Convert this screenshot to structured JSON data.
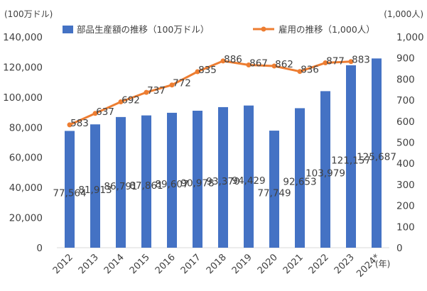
{
  "chart_data": {
    "type": "bar",
    "categories": [
      "2012",
      "2013",
      "2014",
      "2015",
      "2016",
      "2017",
      "2018",
      "2019",
      "2020",
      "2021",
      "2022",
      "2023",
      "2024*"
    ],
    "xlabel": "(年)",
    "series": [
      {
        "name": "部品生産額の推移（100万ドル）",
        "type": "bar",
        "axis": "left",
        "color": "#4472C4",
        "values": [
          77564,
          81913,
          86791,
          87861,
          89607,
          90978,
          93370,
          94429,
          77749,
          92653,
          103979,
          121157,
          125687
        ],
        "labels": [
          "77,564",
          "81,913",
          "86,791",
          "87,861",
          "89,607",
          "90,978",
          "93,370",
          "94,429",
          "77,749",
          "92,653",
          "103,979",
          "121,157",
          "125,687"
        ]
      },
      {
        "name": "雇用の推移（1,000人）",
        "type": "line",
        "axis": "right",
        "color": "#ED7D31",
        "values": [
          583,
          637,
          692,
          737,
          772,
          835,
          886,
          867,
          862,
          836,
          877,
          883,
          null
        ],
        "labels": [
          "583",
          "637",
          "692",
          "737",
          "772",
          "835",
          "886",
          "867",
          "862",
          "836",
          "877",
          "883",
          ""
        ]
      }
    ],
    "left_axis": {
      "unit": "(100万ドル)",
      "ylim": [
        0,
        140000
      ],
      "ticks": [
        0,
        20000,
        40000,
        60000,
        80000,
        100000,
        120000,
        140000
      ],
      "tick_labels": [
        "0",
        "20,000",
        "40,000",
        "60,000",
        "80,000",
        "100,000",
        "120,000",
        "140,000"
      ]
    },
    "right_axis": {
      "unit": "(1,000人)",
      "ylim": [
        0,
        1000
      ],
      "ticks": [
        0,
        100,
        200,
        300,
        400,
        500,
        600,
        700,
        800,
        900,
        1000
      ],
      "tick_labels": [
        "0",
        "100",
        "200",
        "300",
        "400",
        "500",
        "600",
        "700",
        "800",
        "900",
        "1,000"
      ]
    },
    "legend_position": "top",
    "grid": false
  }
}
